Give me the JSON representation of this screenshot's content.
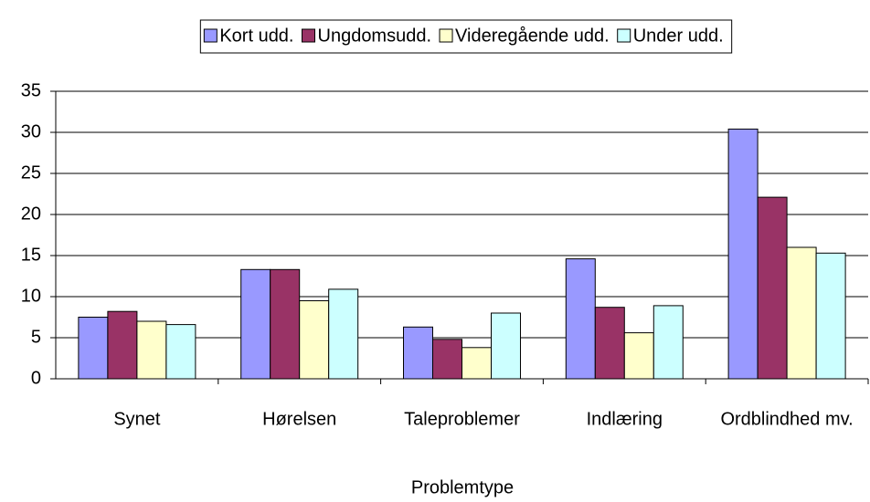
{
  "chart_data": {
    "type": "bar",
    "categories": [
      "Synet",
      "Hørelsen",
      "Taleproblemer",
      "Indlæring",
      "Ordblindhed mv."
    ],
    "series": [
      {
        "name": "Kort udd.",
        "color": "#9999ff",
        "values": [
          7.5,
          13.3,
          6.3,
          14.6,
          30.4
        ]
      },
      {
        "name": "Ungdomsudd.",
        "color": "#993366",
        "values": [
          8.2,
          13.3,
          4.8,
          8.7,
          22.1
        ]
      },
      {
        "name": "Videregående udd.",
        "color": "#ffffcc",
        "values": [
          7.0,
          9.5,
          3.8,
          5.6,
          16.0
        ]
      },
      {
        "name": "Under udd.",
        "color": "#ccffff",
        "values": [
          6.6,
          10.9,
          8.0,
          8.9,
          15.3
        ]
      }
    ],
    "x_label": "Problemtype",
    "ylim": [
      0,
      35
    ],
    "yticks": [
      0,
      5,
      10,
      15,
      20,
      25,
      30,
      35
    ],
    "grid": true,
    "legend": "top"
  }
}
